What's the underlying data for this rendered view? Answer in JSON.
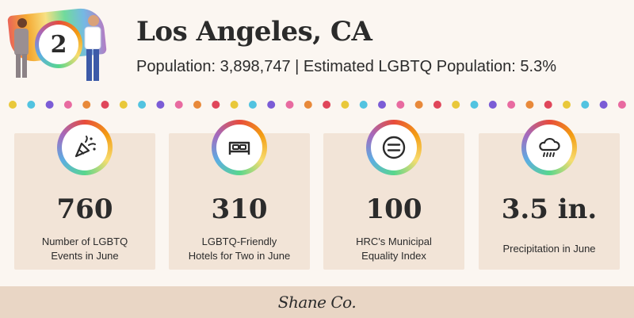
{
  "header": {
    "rank": "2",
    "city": "Los Angeles, CA",
    "population_line": "Population: 3,898,747 | Estimated LGBTQ Population: 5.3%"
  },
  "colors": {
    "dots": [
      "#e9c83a",
      "#52c3e0",
      "#7b5cd6",
      "#e86aa0",
      "#e8893a",
      "#e0465a"
    ]
  },
  "stats": [
    {
      "icon": "party-popper-icon",
      "value": "760",
      "label_line1": "Number of LGBTQ",
      "label_line2": "Events in June"
    },
    {
      "icon": "bed-icon",
      "value": "310",
      "label_line1": "LGBTQ-Friendly",
      "label_line2": "Hotels for Two in June"
    },
    {
      "icon": "equality-icon",
      "value": "100",
      "label_line1": "HRC's Municipal",
      "label_line2": "Equality Index"
    },
    {
      "icon": "rain-cloud-icon",
      "value": "3.5 in.",
      "label_line1": "Precipitation in June",
      "label_line2": ""
    }
  ],
  "footer": {
    "brand": "Shane Co."
  }
}
